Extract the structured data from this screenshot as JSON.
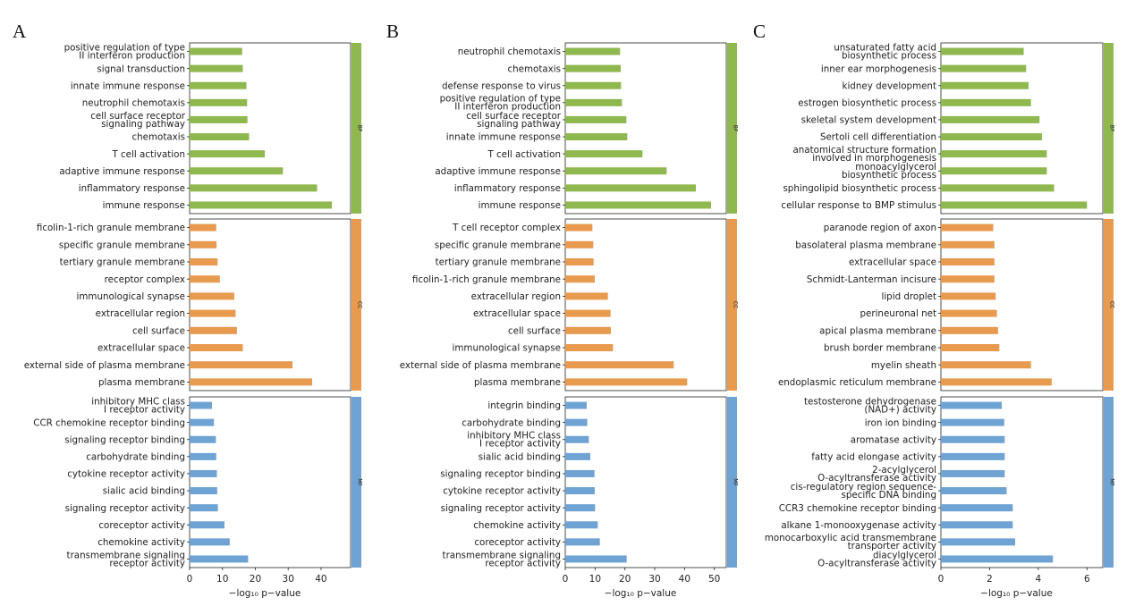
{
  "chart_data": [
    {
      "type": "bar",
      "orientation": "horizontal",
      "panel_label": "A",
      "xlabel": "−log₁₀ p−value",
      "xlim": [
        0,
        49
      ],
      "xticks": [
        0,
        10,
        20,
        30,
        40
      ],
      "facets": [
        {
          "name": "BP",
          "color": "#8fb84f",
          "categories": [
            "positive regulation of type II interferon production",
            "signal transduction",
            "innate immune response",
            "neutrophil chemotaxis",
            "cell surface receptor signaling pathway",
            "chemotaxis",
            "T cell activation",
            "adaptive immune response",
            "inflammatory response",
            "immune response"
          ],
          "values": [
            16.0,
            16.2,
            17.3,
            17.5,
            17.6,
            18.1,
            22.9,
            28.4,
            38.8,
            43.3
          ]
        },
        {
          "name": "CC",
          "color": "#e89a4f",
          "categories": [
            "ficolin-1-rich granule membrane",
            "specific granule membrane",
            "tertiary granule membrane",
            "receptor complex",
            "immunological synapse",
            "extracellular region",
            "cell surface",
            "extracellular space",
            "external side of plasma membrane",
            "plasma membrane"
          ],
          "values": [
            8.1,
            8.2,
            8.5,
            9.2,
            13.6,
            14.0,
            14.4,
            16.2,
            31.3,
            37.3
          ]
        },
        {
          "name": "MF",
          "color": "#6fa3d4",
          "categories": [
            "inhibitory MHC class I receptor activity",
            "CCR chemokine receptor binding",
            "signaling receptor binding",
            "carbohydrate binding",
            "cytokine receptor activity",
            "sialic acid binding",
            "signaling receptor activity",
            "coreceptor activity",
            "chemokine activity",
            "transmembrane signaling receptor activity"
          ],
          "values": [
            6.8,
            7.4,
            8.0,
            8.1,
            8.3,
            8.4,
            8.6,
            10.6,
            12.2,
            17.8
          ]
        }
      ]
    },
    {
      "type": "bar",
      "orientation": "horizontal",
      "panel_label": "B",
      "xlabel": "−log₁₀ p−value",
      "xlim": [
        0,
        54
      ],
      "xticks": [
        0,
        10,
        20,
        30,
        40,
        50
      ],
      "facets": [
        {
          "name": "BP",
          "color": "#8fb84f",
          "categories": [
            "neutrophil chemotaxis",
            "chemotaxis",
            "defense response to virus",
            "positive regulation of type II interferon production",
            "cell surface receptor signaling pathway",
            "innate immune response",
            "T cell activation",
            "adaptive immune response",
            "inflammatory response",
            "immune response"
          ],
          "values": [
            18.4,
            18.6,
            18.7,
            19.0,
            20.5,
            20.8,
            25.9,
            34.0,
            43.8,
            48.9
          ]
        },
        {
          "name": "CC",
          "color": "#e89a4f",
          "categories": [
            "T cell receptor complex",
            "specific granule membrane",
            "tertiary granule membrane",
            "ficolin-1-rich granule membrane",
            "extracellular region",
            "extracellular space",
            "cell surface",
            "immunological synapse",
            "external side of plasma membrane",
            "plasma membrane"
          ],
          "values": [
            9.1,
            9.4,
            9.5,
            9.9,
            14.3,
            15.2,
            15.3,
            16.0,
            36.4,
            40.9
          ]
        },
        {
          "name": "MF",
          "color": "#6fa3d4",
          "categories": [
            "integrin binding",
            "carbohydrate binding",
            "inhibitory MHC class I receptor activity",
            "sialic acid binding",
            "signaling receptor binding",
            "cytokine receptor activity",
            "signaling receptor activity",
            "chemokine activity",
            "coreceptor activity",
            "transmembrane signaling receptor activity"
          ],
          "values": [
            7.2,
            7.4,
            7.9,
            8.4,
            9.8,
            9.9,
            10.0,
            10.9,
            11.6,
            20.6
          ]
        }
      ]
    },
    {
      "type": "bar",
      "orientation": "horizontal",
      "panel_label": "C",
      "xlabel": "−log₁₀ p−value",
      "xlim": [
        0,
        6.65
      ],
      "xticks": [
        0,
        2,
        4,
        6
      ],
      "facets": [
        {
          "name": "BP",
          "color": "#8fb84f",
          "categories": [
            "unsaturated fatty acid biosynthetic process",
            "inner ear morphogenesis",
            "kidney development",
            "estrogen biosynthetic process",
            "skeletal system development",
            "Sertoli cell differentiation",
            "anatomical structure formation involved in morphogenesis",
            "monoacylglycerol biosynthetic process",
            "sphingolipid biosynthetic process",
            "cellular response to BMP stimulus"
          ],
          "values": [
            3.4,
            3.5,
            3.6,
            3.7,
            4.05,
            4.15,
            4.35,
            4.35,
            4.65,
            6.0
          ]
        },
        {
          "name": "CC",
          "color": "#e89a4f",
          "categories": [
            "paranode region of axon",
            "basolateral plasma membrane",
            "extracellular space",
            "Schmidt-Lanterman incisure",
            "lipid droplet",
            "perineuronal net",
            "apical plasma membrane",
            "brush border membrane",
            "myelin sheath",
            "endoplasmic reticulum membrane"
          ],
          "values": [
            2.15,
            2.2,
            2.2,
            2.2,
            2.25,
            2.3,
            2.35,
            2.4,
            3.7,
            4.55
          ]
        },
        {
          "name": "MF",
          "color": "#6fa3d4",
          "categories": [
            "testosterone dehydrogenase (NAD+) activity",
            "iron ion binding",
            "aromatase activity",
            "fatty acid elongase activity",
            "2-acylglycerol O-acyltransferase activity",
            "cis-regulatory region sequence-specific DNA binding",
            "CCR3 chemokine receptor binding",
            "alkane 1-monooxygenase activity",
            "monocarboxylic acid transmembrane transporter activity",
            "diacylglycerol O-acyltransferase activity"
          ],
          "values": [
            2.5,
            2.6,
            2.62,
            2.62,
            2.62,
            2.7,
            2.95,
            2.95,
            3.05,
            4.6
          ]
        }
      ]
    }
  ]
}
